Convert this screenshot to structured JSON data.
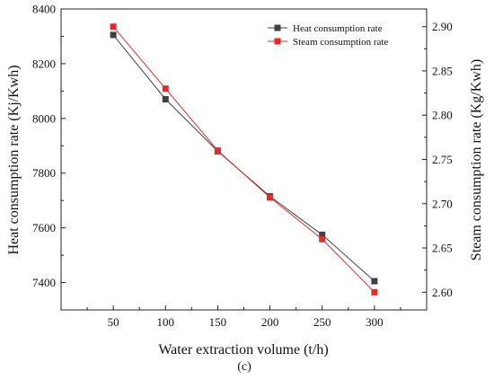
{
  "chart_data": {
    "type": "line",
    "title": "",
    "xlabel": "Water extraction volume (t/h)",
    "ylabel_left": "Heat consumption rate (Kj/Kwh)",
    "ylabel_right": "Steam consumption rate (Kg/Kwh)",
    "caption": "(c)",
    "x": [
      50,
      100,
      150,
      200,
      250,
      300
    ],
    "x_ticks": [
      "50",
      "100",
      "150",
      "200",
      "250",
      "300"
    ],
    "xlim": [
      0,
      350
    ],
    "ylim_left": [
      7300,
      8400
    ],
    "ylim_right": [
      2.58,
      2.92
    ],
    "left_ticks": [
      {
        "value": 7400,
        "label": "7400"
      },
      {
        "value": 7600,
        "label": "7600"
      },
      {
        "value": 7800,
        "label": "7800"
      },
      {
        "value": 8000,
        "label": "8000"
      },
      {
        "value": 8200,
        "label": "8200"
      },
      {
        "value": 8400,
        "label": "8400"
      }
    ],
    "right_ticks": [
      {
        "value": 2.6,
        "label": "2.60"
      },
      {
        "value": 2.65,
        "label": "2.65"
      },
      {
        "value": 2.7,
        "label": "2.70"
      },
      {
        "value": 2.75,
        "label": "2.75"
      },
      {
        "value": 2.8,
        "label": "2.80"
      },
      {
        "value": 2.85,
        "label": "2.85"
      },
      {
        "value": 2.9,
        "label": "2.90"
      }
    ],
    "legend_position": "top-right",
    "grid": false,
    "series": [
      {
        "name": "Heat consumption rate",
        "axis": "left",
        "color": "#3f3f3f",
        "marker": "square",
        "values": [
          8305,
          8070,
          7880,
          7715,
          7575,
          7405
        ]
      },
      {
        "name": "Steam consumption rate",
        "axis": "right",
        "color": "#e8282b",
        "marker": "square",
        "values": [
          2.9,
          2.83,
          2.76,
          2.707,
          2.66,
          2.6
        ]
      }
    ]
  }
}
